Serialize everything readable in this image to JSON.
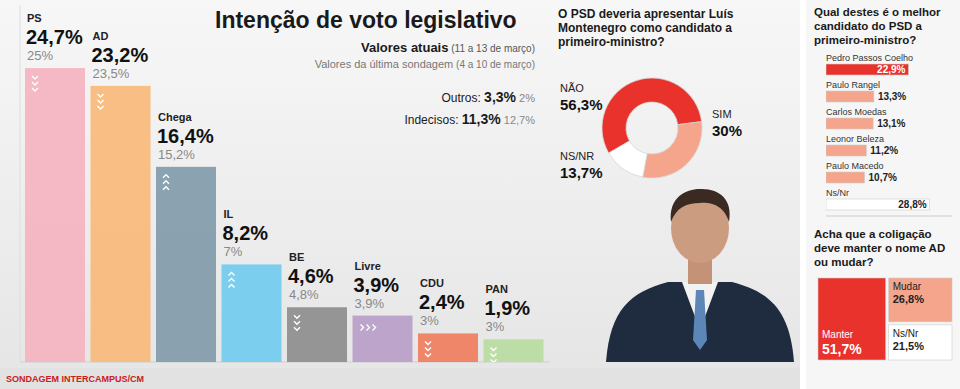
{
  "chart_data": [
    {
      "type": "bar",
      "title": "Intenção de voto legislativo",
      "categories": [
        "PS",
        "AD",
        "Chega",
        "IL",
        "BE",
        "Livre",
        "CDU",
        "PAN"
      ],
      "series": [
        {
          "name": "Valores atuais",
          "period": "(11 a 13 de março)",
          "values": [
            24.7,
            23.2,
            16.4,
            8.2,
            4.6,
            3.9,
            2.4,
            1.9
          ],
          "value_labels": [
            "24,7%",
            "23,2%",
            "16,4%",
            "8,2%",
            "4,6%",
            "3,9%",
            "2,4%",
            "1,9%"
          ],
          "colors": [
            "#f5b3c0",
            "#f8b878",
            "#7f9aaa",
            "#6fcbee",
            "#8c8c8c",
            "#b79cc8",
            "#ef7b5c",
            "#b8dba0"
          ]
        },
        {
          "name": "Valores da última sondagem",
          "period": "(4 a 10 de março)",
          "values": [
            25,
            23.5,
            15.2,
            7,
            4.8,
            3.9,
            3,
            3
          ],
          "value_labels": [
            "25%",
            "23,5%",
            "15,2%",
            "7%",
            "4,8%",
            "3,9%",
            "3%",
            "3%"
          ]
        }
      ],
      "annotations": [
        {
          "label": "Outros:",
          "value": 3.3,
          "value_label": "3,3%",
          "previous": 2,
          "previous_label": "2%"
        },
        {
          "label": "Indecisos:",
          "value": 11.3,
          "value_label": "11,3%",
          "previous": 12.7,
          "previous_label": "12,7%"
        }
      ],
      "ylim": [
        0,
        30
      ],
      "tick_labels": false,
      "data_labels": true,
      "source": "SONDAGEM INTERCAMPUS/CM"
    },
    {
      "type": "donut",
      "title": "O PSD deveria apresentar Luís Montenegro como candidato a primeiro-ministro?",
      "categories": [
        "NÃO",
        "SIM",
        "NS/NR"
      ],
      "values": [
        56.3,
        30,
        13.7
      ],
      "value_labels": [
        "56,3%",
        "30%",
        "13,7%"
      ],
      "colors": [
        "#e8322b",
        "#f4a58c",
        "#ffffff"
      ],
      "data_labels": true
    },
    {
      "type": "bar",
      "orientation": "horizontal",
      "title": "Qual destes é o melhor candidato do PSD a primeiro-ministro?",
      "categories": [
        "Pedro Passos Coelho",
        "Paulo Rangel",
        "Carlos Moedas",
        "Leonor Beleza",
        "Paulo Macedo",
        "Ns/Nr"
      ],
      "values": [
        22.9,
        13.3,
        13.1,
        11.2,
        10.7,
        28.8
      ],
      "value_labels": [
        "22,9%",
        "13,3%",
        "13,1%",
        "11,2%",
        "10,7%",
        "28,8%"
      ],
      "colors": [
        "#e8322b",
        "#f4a58c",
        "#f4a58c",
        "#f4a58c",
        "#f4a58c",
        "#ffffff"
      ],
      "xlim": [
        0,
        35
      ],
      "tick_labels": false,
      "data_labels": true
    },
    {
      "type": "treemap",
      "title": "Acha que a coligação deve manter o nome AD ou mudar?",
      "categories": [
        "Manter",
        "Mudar",
        "Ns/Nr"
      ],
      "values": [
        51.7,
        26.8,
        21.5
      ],
      "value_labels": [
        "51,7%",
        "26,8%",
        "21,5%"
      ],
      "colors": [
        "#e8322b",
        "#f4a58c",
        "#ffffff"
      ],
      "data_labels": true
    }
  ]
}
